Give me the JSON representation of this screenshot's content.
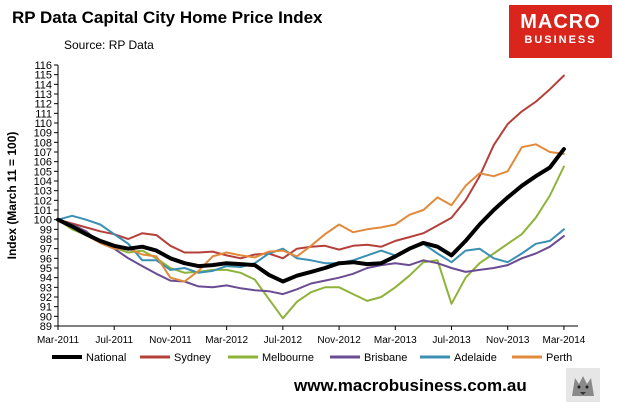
{
  "title": "RP Data Capital City Home Price Index",
  "subtitle": "Source: RP Data",
  "logo": {
    "line1": "MACRO",
    "line2": "BUSINESS"
  },
  "footer_url": "www.macrobusiness.com.au",
  "chart_data": {
    "type": "line",
    "title": "RP Data Capital City Home Price Index",
    "ylabel": "Index (March 11 = 100)",
    "xlabel": "",
    "ylim": [
      89,
      116
    ],
    "y_ticks": [
      89,
      90,
      91,
      92,
      93,
      94,
      95,
      96,
      97,
      98,
      99,
      100,
      101,
      102,
      103,
      104,
      105,
      106,
      107,
      108,
      109,
      110,
      111,
      112,
      113,
      114,
      115,
      116
    ],
    "x_ticks": [
      {
        "label": "Mar-2011",
        "month": 0
      },
      {
        "label": "Jul-2011",
        "month": 4
      },
      {
        "label": "Nov-2011",
        "month": 8
      },
      {
        "label": "Mar-2012",
        "month": 12
      },
      {
        "label": "Jul-2012",
        "month": 16
      },
      {
        "label": "Nov-2012",
        "month": 20
      },
      {
        "label": "Mar-2013",
        "month": 24
      },
      {
        "label": "Jul-2013",
        "month": 28
      },
      {
        "label": "Nov-2013",
        "month": 32
      },
      {
        "label": "Mar-2014",
        "month": 36
      }
    ],
    "x_month": [
      0,
      1,
      2,
      3,
      4,
      5,
      6,
      7,
      8,
      9,
      10,
      11,
      12,
      13,
      14,
      15,
      16,
      17,
      18,
      19,
      20,
      21,
      22,
      23,
      24,
      25,
      26,
      27,
      28,
      29,
      30,
      31,
      32,
      33,
      34,
      35,
      36
    ],
    "grid": false,
    "legend_position": "bottom",
    "series": [
      {
        "name": "National",
        "color": "#000000",
        "width": 4,
        "values": [
          100,
          99.3,
          98.5,
          97.8,
          97.3,
          97.0,
          97.2,
          96.8,
          96.0,
          95.5,
          95.2,
          95.3,
          95.5,
          95.4,
          95.3,
          94.3,
          93.6,
          94.2,
          94.6,
          95.0,
          95.5,
          95.6,
          95.4,
          95.5,
          96.2,
          97.0,
          97.6,
          97.2,
          96.3,
          97.8,
          99.5,
          101.0,
          102.3,
          103.5,
          104.5,
          105.4,
          107.3
        ]
      },
      {
        "name": "Sydney",
        "color": "#b5403a",
        "width": 2,
        "values": [
          100,
          99.6,
          99.2,
          98.8,
          98.5,
          98.0,
          98.6,
          98.4,
          97.3,
          96.6,
          96.6,
          96.7,
          96.3,
          96.0,
          96.4,
          96.5,
          96.0,
          97.0,
          97.2,
          97.3,
          96.9,
          97.3,
          97.4,
          97.2,
          97.8,
          98.2,
          98.6,
          99.4,
          100.2,
          102.0,
          104.5,
          107.7,
          109.9,
          111.2,
          112.2,
          113.5,
          114.9
        ]
      },
      {
        "name": "Melbourne",
        "color": "#8fb23a",
        "width": 2,
        "values": [
          100,
          99.0,
          98.4,
          97.8,
          97.1,
          96.6,
          96.8,
          96.0,
          95.0,
          94.5,
          94.6,
          94.8,
          94.8,
          94.5,
          93.8,
          91.8,
          89.8,
          91.5,
          92.5,
          93.0,
          93.0,
          92.3,
          91.6,
          92.0,
          93.0,
          94.2,
          95.6,
          95.8,
          91.3,
          94.0,
          95.5,
          96.5,
          97.5,
          98.5,
          100.2,
          102.5,
          105.5
        ]
      },
      {
        "name": "Brisbane",
        "color": "#6a4c93",
        "width": 2,
        "values": [
          100,
          99.5,
          98.8,
          97.6,
          97.0,
          96.0,
          95.2,
          94.4,
          93.7,
          93.6,
          93.1,
          93.0,
          93.2,
          92.9,
          92.7,
          92.6,
          92.3,
          92.8,
          93.4,
          93.7,
          94.0,
          94.4,
          95.0,
          95.3,
          95.5,
          95.3,
          95.8,
          95.5,
          95.0,
          94.6,
          94.8,
          95.0,
          95.3,
          96.0,
          96.5,
          97.2,
          98.3
        ]
      },
      {
        "name": "Adelaide",
        "color": "#3a8fb2",
        "width": 2,
        "values": [
          100,
          100.4,
          100.0,
          99.5,
          98.5,
          97.5,
          95.8,
          95.8,
          94.8,
          95.0,
          94.5,
          94.7,
          95.2,
          95.1,
          95.5,
          96.5,
          97.0,
          96.0,
          95.8,
          95.5,
          95.5,
          95.8,
          96.3,
          96.8,
          96.3,
          97.0,
          97.5,
          96.5,
          95.6,
          96.8,
          97.0,
          96.0,
          95.6,
          96.5,
          97.5,
          97.8,
          99.0
        ]
      },
      {
        "name": "Perth",
        "color": "#e08a3a",
        "width": 2,
        "values": [
          100,
          99.3,
          98.4,
          97.6,
          97.0,
          97.0,
          96.4,
          96.2,
          94.0,
          93.6,
          94.7,
          96.2,
          96.6,
          96.3,
          96.1,
          96.7,
          96.8,
          96.2,
          97.3,
          98.5,
          99.5,
          98.7,
          99.0,
          99.2,
          99.5,
          100.5,
          101.0,
          102.3,
          101.5,
          103.5,
          104.8,
          104.5,
          105.0,
          107.5,
          107.8,
          107.0,
          106.8
        ]
      }
    ]
  }
}
